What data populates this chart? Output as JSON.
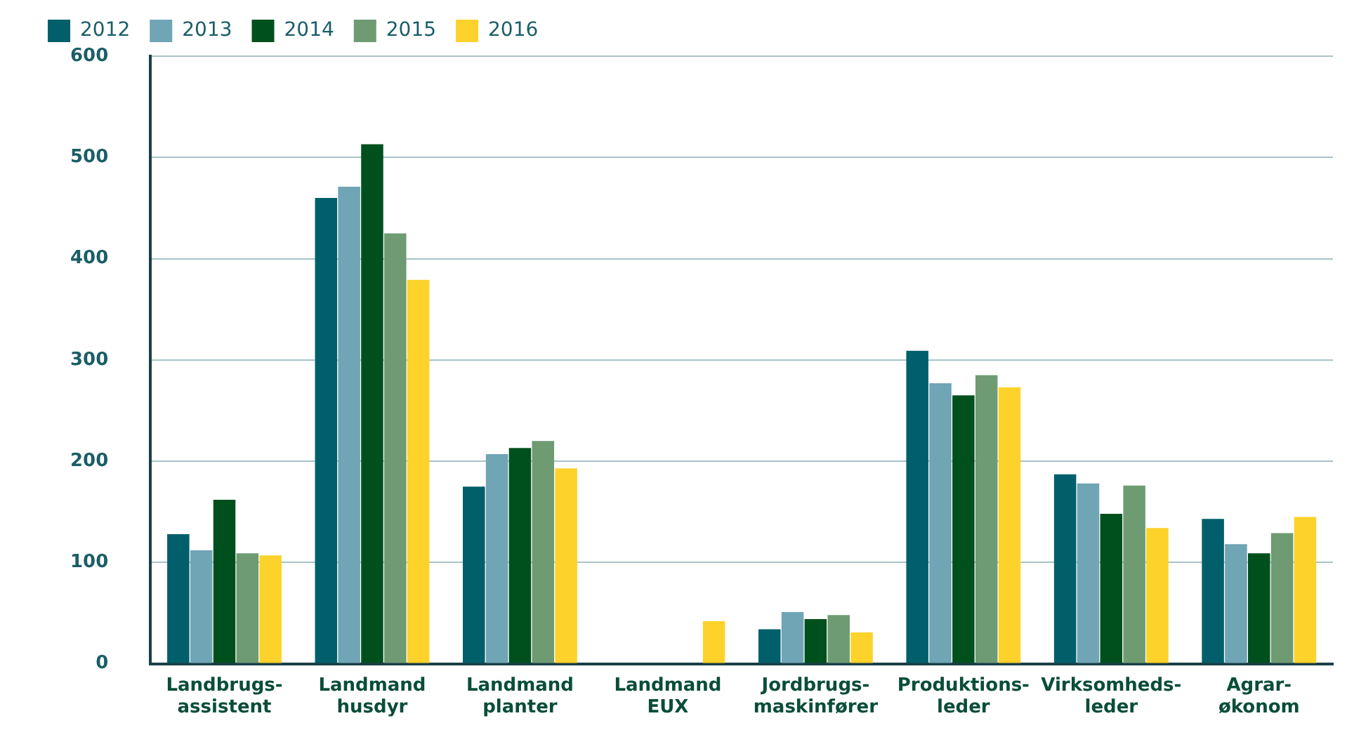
{
  "chart_data": {
    "type": "bar",
    "categories": [
      "Landbrugs-\nassistent",
      "Landmand\nhusdyr",
      "Landmand\nplanter",
      "Landmand\nEUX",
      "Jordbrugs-\nmaskinfører",
      "Produktions-\nleder",
      "Virksomheds-\nleder",
      "Agrar-\nøkonom"
    ],
    "series": [
      {
        "name": "2012",
        "color": "#005f6b",
        "values": [
          128,
          460,
          175,
          null,
          34,
          309,
          187,
          143
        ]
      },
      {
        "name": "2013",
        "color": "#6fa5b5",
        "values": [
          112,
          471,
          207,
          null,
          51,
          277,
          178,
          118
        ]
      },
      {
        "name": "2014",
        "color": "#00501e",
        "values": [
          162,
          513,
          213,
          null,
          44,
          265,
          148,
          109
        ]
      },
      {
        "name": "2015",
        "color": "#6f9b73",
        "values": [
          109,
          425,
          220,
          null,
          48,
          285,
          176,
          129
        ]
      },
      {
        "name": "2016",
        "color": "#fdd22a",
        "values": [
          107,
          379,
          193,
          42,
          31,
          273,
          134,
          145
        ]
      }
    ],
    "ylim": [
      0,
      600
    ],
    "yticks": [
      0,
      100,
      200,
      300,
      400,
      500,
      600
    ],
    "grid": "y",
    "legend": "top left"
  }
}
